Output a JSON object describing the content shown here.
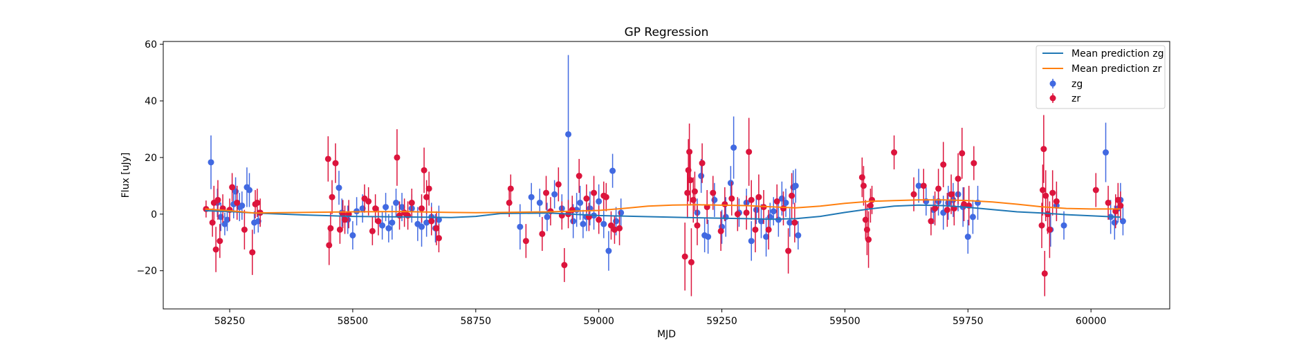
{
  "chart_data": {
    "type": "scatter",
    "title": "GP Regression",
    "xlabel": "MJD",
    "ylabel": "Flux [uJy]",
    "xlim": [
      58115,
      60160
    ],
    "ylim": [
      -33.5,
      61
    ],
    "xticks": [
      58250,
      58500,
      58750,
      59000,
      59250,
      59500,
      59750,
      60000
    ],
    "yticks": [
      -20,
      0,
      20,
      40,
      60
    ],
    "grid": false,
    "legend_position": "top-right",
    "series": [
      {
        "name": "Mean prediction zg",
        "kind": "line",
        "color": "#1f77b4",
        "x": [
          58200,
          58250,
          58300,
          58400,
          58500,
          58600,
          58700,
          58750,
          58800,
          58900,
          59000,
          59100,
          59200,
          59300,
          59350,
          59400,
          59450,
          59500,
          59550,
          59600,
          59650,
          59700,
          59750,
          59800,
          59850,
          59900,
          59950,
          60000,
          60060
        ],
        "y": [
          1.2,
          0.9,
          0.4,
          -0.3,
          -0.8,
          -1.0,
          -1.2,
          -0.8,
          0.2,
          0.4,
          -0.5,
          -0.9,
          -1.3,
          -1.6,
          -1.8,
          -1.6,
          -0.8,
          0.6,
          1.8,
          2.8,
          3.2,
          3.0,
          2.4,
          1.6,
          0.8,
          0.4,
          -0.2,
          -0.6,
          -1.1
        ]
      },
      {
        "name": "Mean prediction zr",
        "kind": "line",
        "color": "#ff7f0e",
        "x": [
          58200,
          58250,
          58300,
          58400,
          58500,
          58600,
          58700,
          58750,
          58800,
          58900,
          59000,
          59050,
          59100,
          59150,
          59200,
          59300,
          59350,
          59400,
          59450,
          59500,
          59550,
          59600,
          59650,
          59700,
          59750,
          59800,
          59850,
          59900,
          59950,
          60000,
          60060
        ],
        "y": [
          1.8,
          1.2,
          0.4,
          0.6,
          0.8,
          0.9,
          0.6,
          0.5,
          0.6,
          0.8,
          1.3,
          2.0,
          2.8,
          3.2,
          3.3,
          3.0,
          2.6,
          2.2,
          2.8,
          3.8,
          4.5,
          4.8,
          5.0,
          5.0,
          4.8,
          4.3,
          3.5,
          2.6,
          2.0,
          1.8,
          1.8
        ]
      },
      {
        "name": "zg",
        "kind": "errorbar",
        "color": "#4169e1",
        "x": [
          58212,
          58225,
          58232,
          58240,
          58245,
          58258,
          58262,
          58270,
          58275,
          58285,
          58290,
          58300,
          58308,
          58472,
          58478,
          58490,
          58500,
          58508,
          58520,
          58560,
          58567,
          58573,
          58580,
          58588,
          58600,
          58620,
          58632,
          58640,
          58650,
          58660,
          58668,
          58675,
          58840,
          58863,
          58880,
          58895,
          58910,
          58925,
          58938,
          58948,
          58955,
          58962,
          58968,
          58975,
          58982,
          58990,
          59000,
          59010,
          59020,
          59028,
          59035,
          59045,
          59200,
          59208,
          59215,
          59222,
          59235,
          59250,
          59258,
          59268,
          59274,
          59285,
          59300,
          59310,
          59320,
          59330,
          59340,
          59348,
          59355,
          59365,
          59372,
          59380,
          59388,
          59395,
          59400,
          59405,
          59650,
          59665,
          59680,
          59690,
          59700,
          59710,
          59720,
          59730,
          59740,
          59750,
          59760,
          59770,
          59918,
          59930,
          59945,
          60030,
          60040,
          60048,
          60055,
          60060,
          60065
        ],
        "y": [
          18.3,
          4.0,
          -1.0,
          -3.5,
          -2.0,
          3.5,
          8.0,
          2.5,
          3.0,
          9.5,
          8.5,
          -3.0,
          -2.5,
          9.3,
          0.5,
          -2.0,
          -7.5,
          1.0,
          2.0,
          -4.0,
          2.5,
          -5.0,
          -3.0,
          4.0,
          2.5,
          2.0,
          -3.5,
          -4.5,
          -3.0,
          -1.0,
          -5.0,
          -2.0,
          -4.5,
          6.0,
          4.0,
          -1.0,
          7.0,
          2.0,
          28.2,
          -2.5,
          1.5,
          4.0,
          -3.5,
          -1.0,
          2.0,
          -0.5,
          4.5,
          -3.5,
          -13.0,
          15.3,
          -2.5,
          0.5,
          0.5,
          13.5,
          -7.5,
          -8.0,
          5.0,
          -4.5,
          -1.0,
          11.0,
          23.5,
          0.5,
          4.0,
          -9.5,
          1.5,
          -2.5,
          -8.0,
          -1.0,
          1.0,
          -2.0,
          5.5,
          4.0,
          -3.0,
          9.5,
          10.0,
          -7.5,
          10.0,
          4.5,
          1.5,
          4.5,
          0.5,
          4.0,
          5.0,
          7.0,
          2.5,
          -8.0,
          -1.0,
          4.0,
          -5.5,
          3.0,
          -4.0,
          21.8,
          -1.0,
          -3.0,
          2.0,
          5.0,
          -2.5
        ],
        "yerr": [
          9.5,
          5,
          5,
          4,
          4,
          5,
          5,
          5,
          5,
          7,
          6,
          4,
          4,
          6,
          5,
          5,
          5,
          5,
          5,
          5,
          5,
          5,
          6,
          5,
          5,
          5,
          6,
          7,
          5,
          5,
          5,
          5,
          8,
          5,
          5,
          5,
          5,
          5,
          28,
          6,
          6,
          6,
          5,
          5,
          6,
          5,
          6,
          5,
          7,
          6,
          5,
          5,
          5,
          6,
          6,
          6,
          6,
          6,
          7,
          6,
          11,
          5,
          5,
          7,
          5,
          6,
          7,
          5,
          5,
          6,
          6,
          5,
          5,
          6,
          6,
          5,
          6,
          5,
          5,
          5,
          6,
          6,
          6,
          6,
          7,
          6,
          6,
          6,
          6,
          5,
          5,
          10.5,
          6,
          6,
          5,
          6,
          5
        ]
      },
      {
        "name": "zr",
        "kind": "errorbar",
        "color": "#dc143c",
        "x": [
          58202,
          58215,
          58218,
          58222,
          58226,
          58230,
          58236,
          58250,
          58255,
          58265,
          58280,
          58296,
          58302,
          58306,
          58312,
          58450,
          58452,
          58455,
          58458,
          58465,
          58474,
          58480,
          58484,
          58492,
          58524,
          58532,
          58540,
          58546,
          58552,
          58590,
          58595,
          58605,
          58612,
          58620,
          58640,
          58645,
          58650,
          58655,
          58660,
          58670,
          58675,
          58818,
          58821,
          58852,
          58885,
          58893,
          58902,
          58918,
          58925,
          58930,
          58938,
          58946,
          58960,
          58975,
          58980,
          58990,
          59000,
          59010,
          59015,
          59025,
          59032,
          59042,
          59175,
          59180,
          59182,
          59184,
          59186,
          59188,
          59192,
          59195,
          59200,
          59210,
          59220,
          59232,
          59248,
          59256,
          59270,
          59282,
          59300,
          59305,
          59310,
          59318,
          59325,
          59335,
          59345,
          59362,
          59375,
          59385,
          59392,
          59398,
          59535,
          59538,
          59542,
          59545,
          59548,
          59552,
          59555,
          59600,
          59640,
          59660,
          59675,
          59683,
          59690,
          59700,
          59708,
          59716,
          59722,
          59730,
          59738,
          59742,
          59752,
          59762,
          59900,
          59902,
          59904,
          59906,
          59908,
          59912,
          59916,
          59922,
          59930,
          60010,
          60035,
          60050,
          60055,
          60060
        ],
        "y": [
          1.8,
          -3.0,
          4.0,
          -12.5,
          5.0,
          -9.5,
          2.0,
          1.5,
          9.5,
          4.0,
          -5.5,
          -13.5,
          3.5,
          4.0,
          0.5,
          19.5,
          -11.0,
          -5.0,
          6.0,
          18.0,
          -5.5,
          0.0,
          -2.0,
          0.0,
          5.5,
          4.5,
          -6.0,
          2.0,
          -2.5,
          20.0,
          -0.5,
          0.5,
          -0.5,
          4.0,
          2.0,
          15.5,
          6.0,
          9.0,
          -2.5,
          -5.0,
          -8.5,
          4.0,
          9.0,
          -9.5,
          -7.0,
          7.5,
          1.0,
          10.5,
          -0.5,
          -18.0,
          0.0,
          1.5,
          13.5,
          5.5,
          -1.0,
          7.5,
          -2.0,
          6.5,
          6.0,
          -4.0,
          -5.5,
          -5.0,
          -15.0,
          7.5,
          15.5,
          22.0,
          12.0,
          -17.0,
          5.0,
          8.0,
          -4.0,
          18.0,
          2.5,
          7.5,
          -6.0,
          3.5,
          5.5,
          0.0,
          0.5,
          22.0,
          5.0,
          -5.5,
          6.0,
          2.5,
          -5.5,
          4.5,
          2.0,
          -13.0,
          6.5,
          -3.0,
          13.0,
          10.0,
          -2.0,
          -5.5,
          -9.0,
          3.0,
          5.0,
          21.8,
          7.0,
          10.0,
          -2.5,
          2.0,
          9.0,
          17.5,
          1.5,
          7.0,
          2.0,
          12.5,
          21.5,
          3.5,
          3.0,
          18.0,
          -4.0,
          8.5,
          23.0,
          -21.0,
          6.5,
          0.0,
          -5.5,
          7.5,
          4.5,
          8.5,
          4.0,
          1.0,
          5.0,
          3.0
        ],
        "yerr": [
          3,
          5,
          6,
          8,
          7,
          6,
          5,
          4,
          5,
          6,
          7,
          8,
          5,
          5,
          5,
          8,
          7,
          6,
          6,
          7,
          5,
          5,
          5,
          5,
          5,
          5,
          5,
          5,
          5,
          10,
          5,
          5,
          5,
          5,
          5,
          8,
          6,
          6,
          5,
          6,
          5,
          5,
          5,
          6,
          6,
          6,
          5,
          6,
          5,
          6,
          5,
          5,
          6,
          5,
          5,
          6,
          5,
          5,
          5,
          5,
          5,
          6,
          12,
          9,
          11,
          10,
          9,
          12,
          8,
          7,
          7,
          7,
          6,
          6,
          7,
          6,
          6,
          6,
          6,
          12,
          7,
          8,
          8,
          6,
          7,
          6,
          6,
          8,
          8,
          7,
          7,
          7,
          7,
          9,
          10,
          6,
          5,
          6,
          6,
          6,
          5,
          6,
          7,
          8,
          6,
          7,
          6,
          9,
          9,
          6,
          7,
          6,
          8,
          9,
          12,
          8,
          9,
          7,
          10,
          8,
          7,
          6,
          6,
          6,
          6,
          5
        ]
      }
    ]
  },
  "legend": {
    "items": [
      {
        "label": "Mean prediction zg",
        "color": "#1f77b4",
        "marker": "line"
      },
      {
        "label": "Mean prediction zr",
        "color": "#ff7f0e",
        "marker": "line"
      },
      {
        "label": "zg",
        "color": "#4169e1",
        "marker": "errorbar"
      },
      {
        "label": "zr",
        "color": "#dc143c",
        "marker": "errorbar"
      }
    ]
  }
}
